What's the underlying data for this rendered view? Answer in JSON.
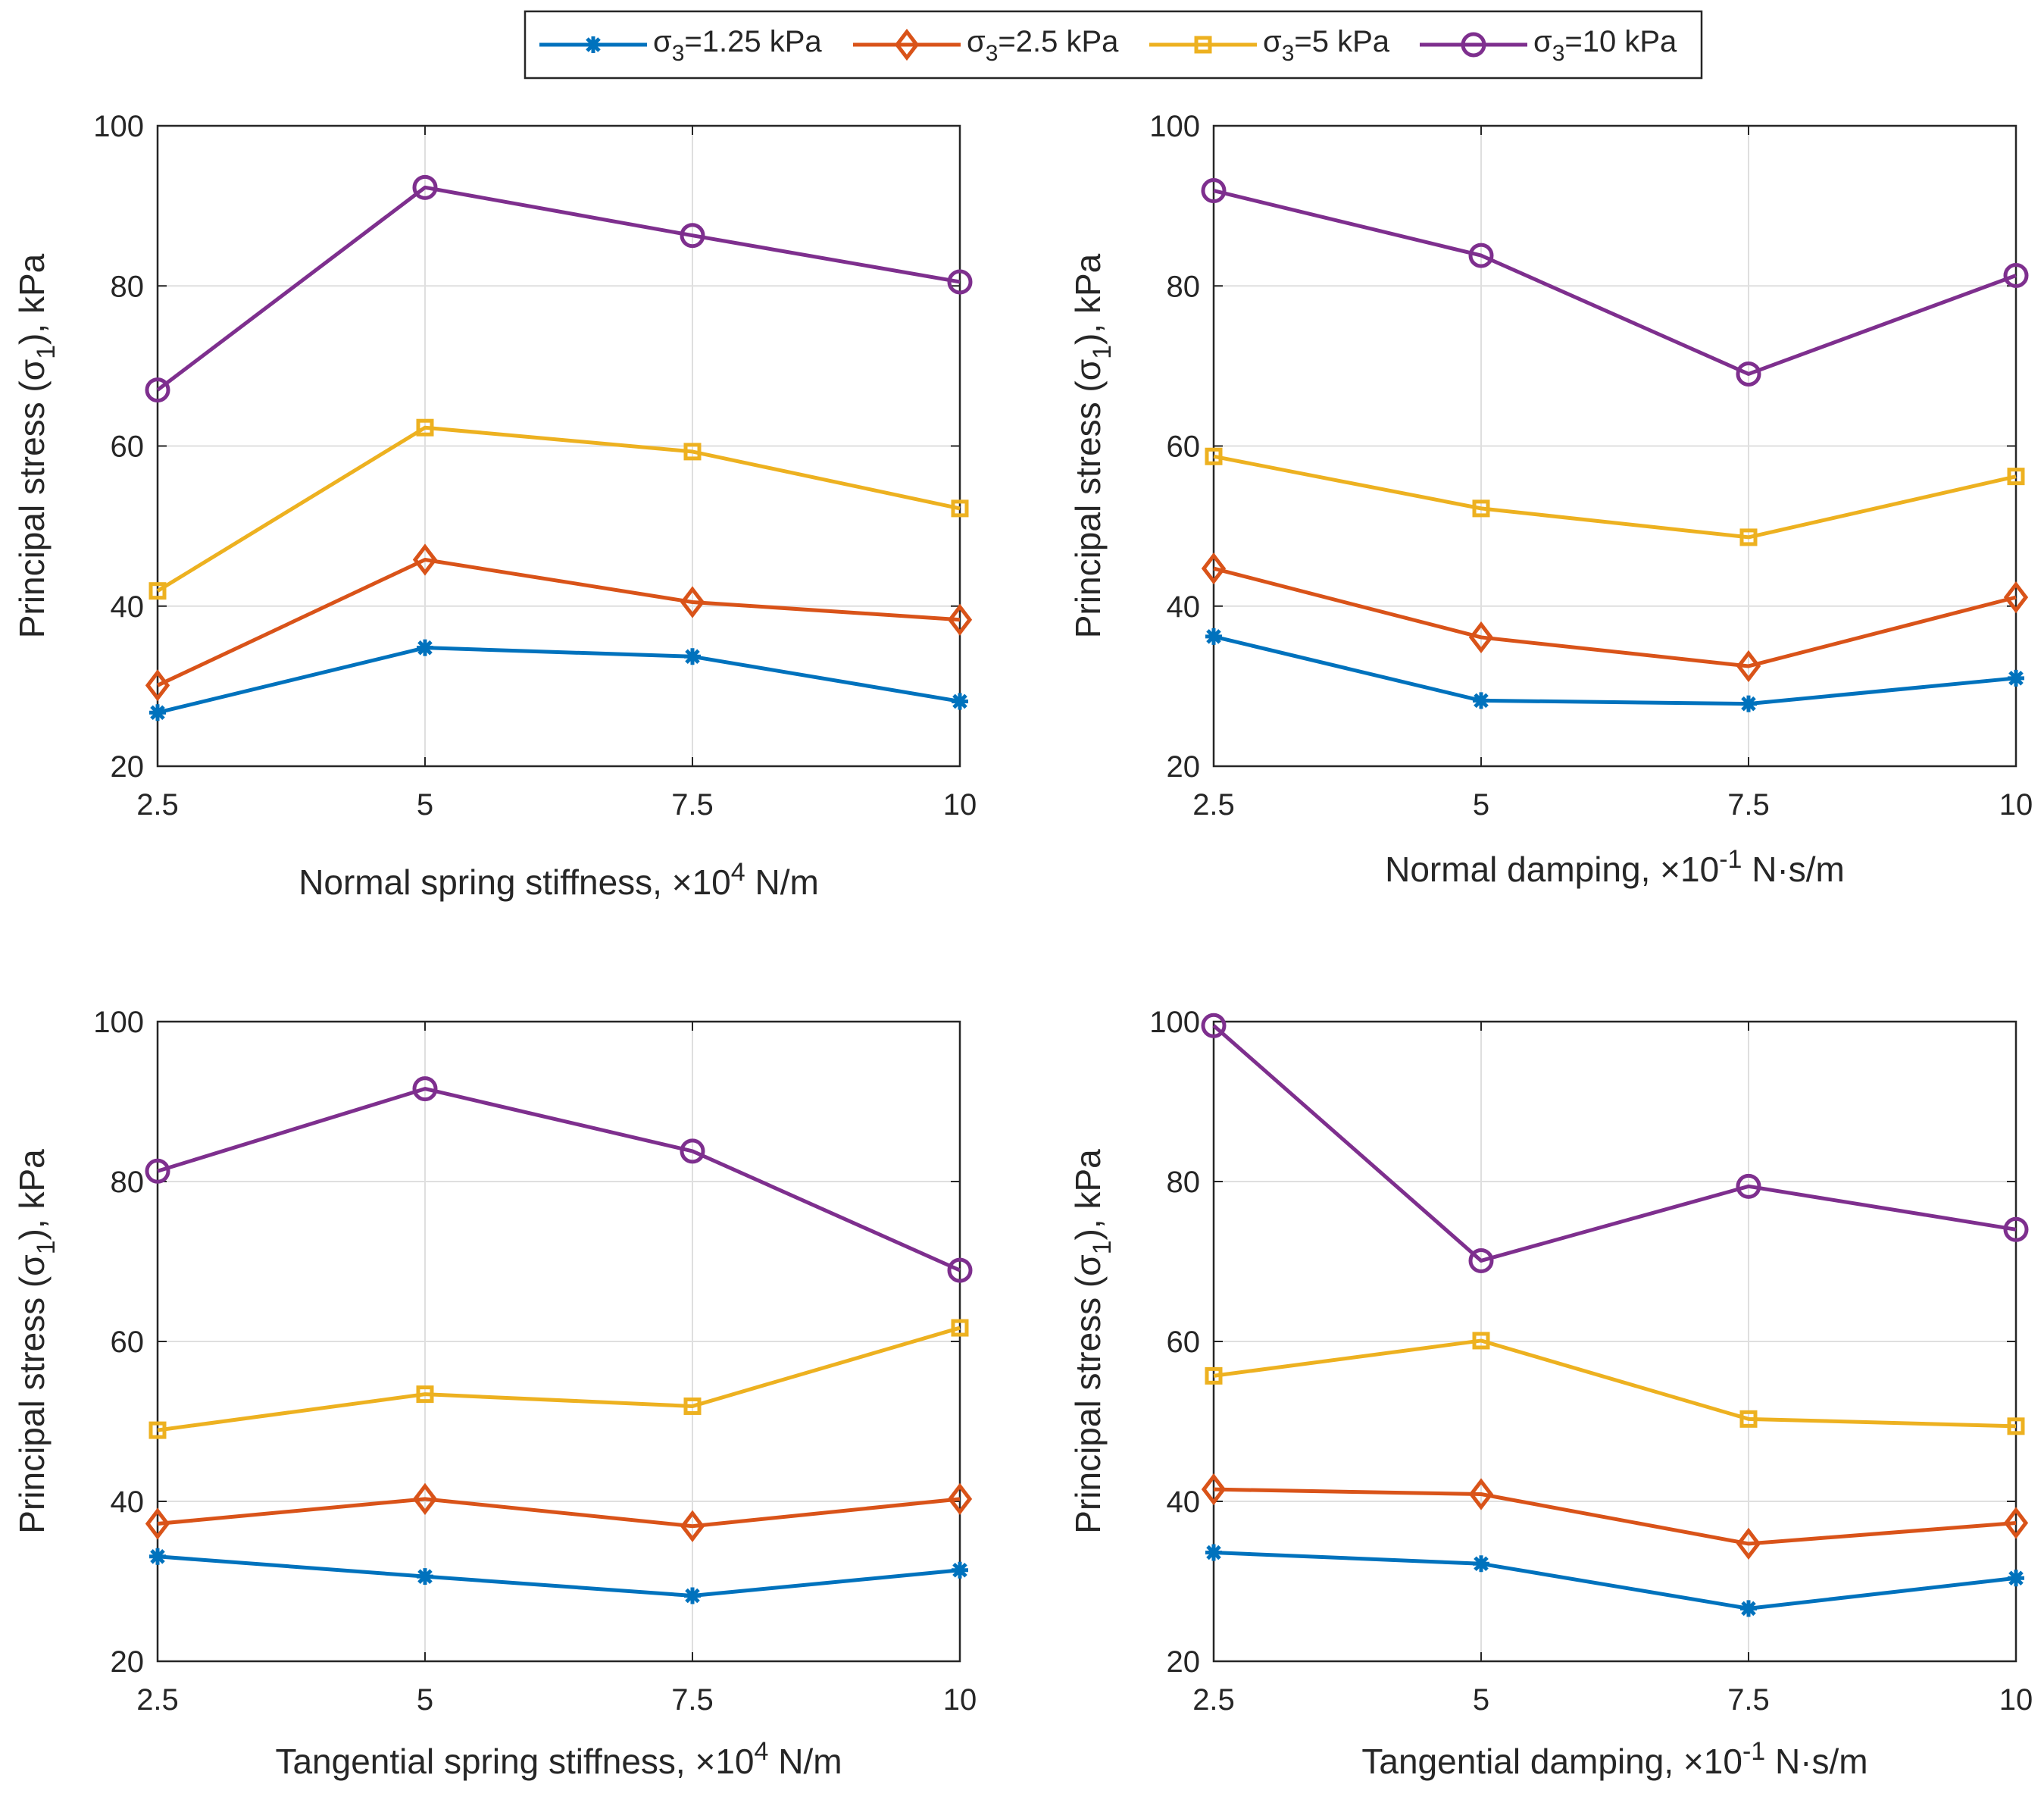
{
  "legend": {
    "entries": [
      {
        "name": "σ3=1.25 kPa",
        "symbol": "σ",
        "sub": "3",
        "rest": "=1.25 kPa",
        "color": "#0072BD",
        "marker": "asterisk"
      },
      {
        "name": "σ3=2.5 kPa",
        "symbol": "σ",
        "sub": "3",
        "rest": "=2.5 kPa",
        "color": "#D95319",
        "marker": "diamond"
      },
      {
        "name": "σ3=5 kPa",
        "symbol": "σ",
        "sub": "3",
        "rest": "=5 kPa",
        "color": "#EDB120",
        "marker": "square"
      },
      {
        "name": "σ3=10 kPa",
        "symbol": "σ",
        "sub": "3",
        "rest": "=10 kPa",
        "color": "#7E2F8E",
        "marker": "circle"
      }
    ]
  },
  "ylabel": {
    "main": "Principal stress (σ",
    "sub": "1",
    "tail": "), kPa"
  },
  "chart_data": [
    {
      "type": "line",
      "x": [
        2.5,
        5,
        7.5,
        10
      ],
      "x_tick_labels": [
        "2.5",
        "5",
        "7.5",
        "10"
      ],
      "y_ticks": [
        "20",
        "40",
        "60",
        "80",
        "100"
      ],
      "xlim": [
        2.5,
        10
      ],
      "ylim": [
        20,
        100
      ],
      "grid": true,
      "xlabel": {
        "main": "Normal spring stiffness, ×10",
        "sup": "4",
        "tail": " N/m"
      },
      "ylabel": "Principal stress (σ1), kPa",
      "series": [
        {
          "name": "σ3=1.25 kPa",
          "values": [
            26.7,
            34.8,
            33.7,
            28.1
          ]
        },
        {
          "name": "σ3=2.5 kPa",
          "values": [
            30.1,
            45.8,
            40.5,
            38.3
          ]
        },
        {
          "name": "σ3=5 kPa",
          "values": [
            41.9,
            62.3,
            59.3,
            52.2
          ]
        },
        {
          "name": "σ3=10 kPa",
          "values": [
            67.0,
            92.3,
            86.3,
            80.5
          ]
        }
      ]
    },
    {
      "type": "line",
      "x": [
        2.5,
        5,
        7.5,
        10
      ],
      "x_tick_labels": [
        "2.5",
        "5",
        "7.5",
        "10"
      ],
      "y_ticks": [
        "20",
        "40",
        "60",
        "80",
        "100"
      ],
      "xlim": [
        2.5,
        10
      ],
      "ylim": [
        20,
        100
      ],
      "grid": true,
      "xlabel": {
        "main": "Normal damping, ×10",
        "sup": "-1",
        "tail": "  N·s/m"
      },
      "ylabel": "Principal stress (σ1), kPa",
      "series": [
        {
          "name": "σ3=1.25 kPa",
          "values": [
            36.2,
            28.2,
            27.8,
            31.0
          ]
        },
        {
          "name": "σ3=2.5 kPa",
          "values": [
            44.7,
            36.1,
            32.5,
            41.1
          ]
        },
        {
          "name": "σ3=5 kPa",
          "values": [
            58.7,
            52.2,
            48.6,
            56.2
          ]
        },
        {
          "name": "σ3=10 kPa",
          "values": [
            91.9,
            83.8,
            69.0,
            81.3
          ]
        }
      ]
    },
    {
      "type": "line",
      "x": [
        2.5,
        5,
        7.5,
        10
      ],
      "x_tick_labels": [
        "2.5",
        "5",
        "7.5",
        "10"
      ],
      "y_ticks": [
        "20",
        "40",
        "60",
        "80",
        "100"
      ],
      "xlim": [
        2.5,
        10
      ],
      "ylim": [
        20,
        100
      ],
      "grid": true,
      "xlabel": {
        "main": "Tangential spring stiffness, ×10",
        "sup": "4",
        "tail": " N/m"
      },
      "ylabel": "Principal stress (σ1), kPa",
      "series": [
        {
          "name": "σ3=1.25 kPa",
          "values": [
            33.1,
            30.6,
            28.2,
            31.4
          ]
        },
        {
          "name": "σ3=2.5 kPa",
          "values": [
            37.2,
            40.3,
            36.9,
            40.3
          ]
        },
        {
          "name": "σ3=5 kPa",
          "values": [
            48.9,
            53.4,
            51.9,
            61.7
          ]
        },
        {
          "name": "σ3=10 kPa",
          "values": [
            81.3,
            91.6,
            83.8,
            68.9
          ]
        }
      ]
    },
    {
      "type": "line",
      "x": [
        2.5,
        5,
        7.5,
        10
      ],
      "x_tick_labels": [
        "2.5",
        "5",
        "7.5",
        "10"
      ],
      "y_ticks": [
        "20",
        "40",
        "60",
        "80",
        "100"
      ],
      "xlim": [
        2.5,
        10
      ],
      "ylim": [
        20,
        100
      ],
      "grid": true,
      "xlabel": {
        "main": "Tangential damping, ×10",
        "sup": "-1",
        "tail": "  N·s/m"
      },
      "ylabel": "Principal stress (σ1), kPa",
      "series": [
        {
          "name": "σ3=1.25 kPa",
          "values": [
            33.6,
            32.2,
            26.6,
            30.4
          ]
        },
        {
          "name": "σ3=2.5 kPa",
          "values": [
            41.5,
            40.9,
            34.7,
            37.3
          ]
        },
        {
          "name": "σ3=5 kPa",
          "values": [
            55.7,
            60.1,
            50.3,
            49.4
          ]
        },
        {
          "name": "σ3=10 kPa",
          "values": [
            99.5,
            70.1,
            79.4,
            74.0
          ]
        }
      ]
    }
  ]
}
